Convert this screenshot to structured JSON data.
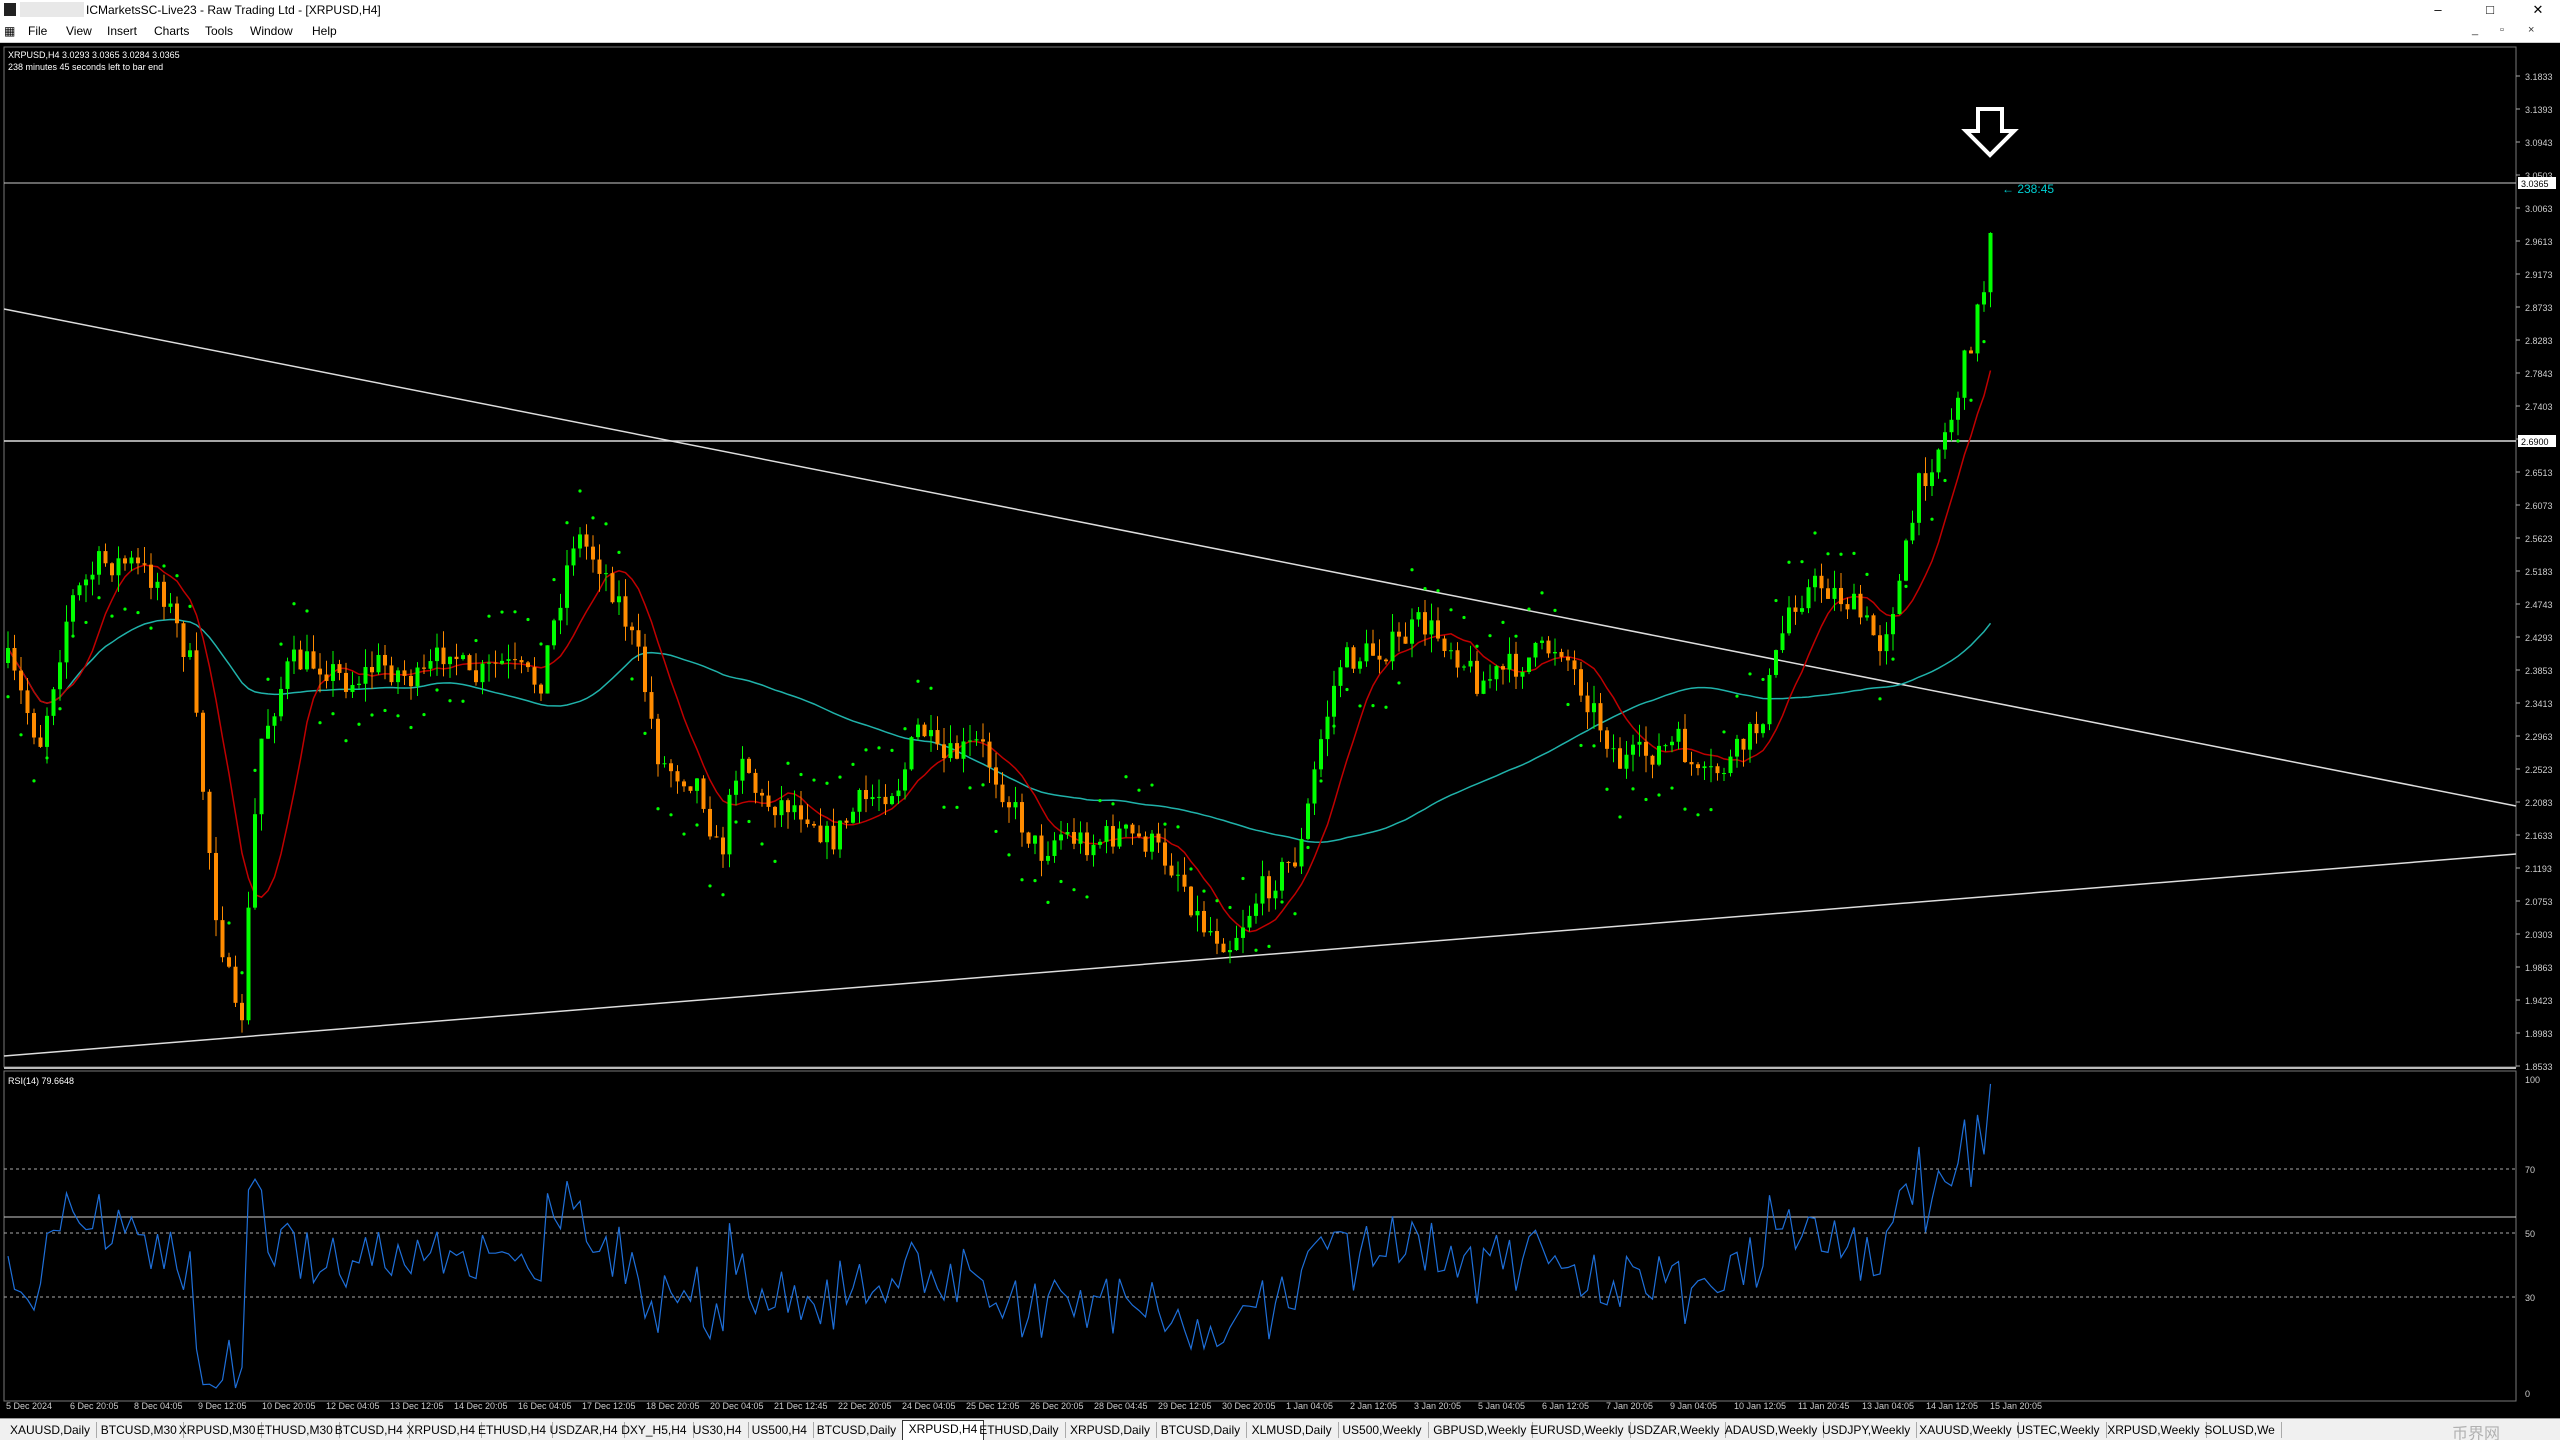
{
  "window": {
    "title": "ICMarketsSC-Live23 - Raw Trading Ltd - [XRPUSD,H4]",
    "minimize": "–",
    "maximize": "□",
    "close": "✕"
  },
  "menu": [
    "File",
    "View",
    "Insert",
    "Charts",
    "Tools",
    "Window",
    "Help"
  ],
  "chart_header": {
    "symbol_line": "XRPUSD,H4  3.0293 3.0365 3.0284 3.0365",
    "timer_line": "238 minutes 45 seconds left to bar end",
    "countdown_label": "← 238:45"
  },
  "rsi_header": "RSI(14) 79.6648",
  "price_axis": [
    "3.1833",
    "3.1393",
    "3.0943",
    "3.0503",
    "3.0063",
    "2.9613",
    "2.9173",
    "2.8733",
    "2.8283",
    "2.7843",
    "2.7403",
    "2.6953",
    "2.6513",
    "2.6073",
    "2.5623",
    "2.5183",
    "2.4743",
    "2.4293",
    "2.3853",
    "2.3413",
    "2.2963",
    "2.2523",
    "2.2083",
    "2.1633",
    "2.1193",
    "2.0753",
    "2.0303",
    "1.9863",
    "1.9423",
    "1.8983",
    "1.8533"
  ],
  "price_tags": {
    "current": "3.0365",
    "horizontal_level": "2.6900"
  },
  "rsi_axis": [
    "100",
    "70",
    "50",
    "30",
    "0"
  ],
  "time_axis": [
    "5 Dec 2024",
    "6 Dec 20:05",
    "8 Dec 04:05",
    "9 Dec 12:05",
    "10 Dec 20:05",
    "12 Dec 04:05",
    "13 Dec 12:05",
    "14 Dec 20:05",
    "16 Dec 04:05",
    "17 Dec 12:05",
    "18 Dec 20:05",
    "20 Dec 04:05",
    "21 Dec 12:45",
    "22 Dec 20:05",
    "24 Dec 04:05",
    "25 Dec 12:05",
    "26 Dec 20:05",
    "28 Dec 04:45",
    "29 Dec 12:05",
    "30 Dec 20:05",
    "1 Jan 04:05",
    "2 Jan 12:05",
    "3 Jan 20:05",
    "5 Jan 04:05",
    "6 Jan 12:05",
    "7 Jan 20:05",
    "9 Jan 04:05",
    "10 Jan 12:05",
    "11 Jan 20:45",
    "13 Jan 04:05",
    "14 Jan 12:05",
    "15 Jan 20:05"
  ],
  "tabs": [
    "XAUUSD,Daily",
    "BTCUSD,M30",
    "XRPUSD,M30",
    "ETHUSD,M30",
    "BTCUSD,H4",
    "XRPUSD,H4",
    "ETHUSD,H4",
    "USDZAR,H4",
    "DXY_H5,H4",
    "US30,H4",
    "US500,H4",
    "BTCUSD,Daily",
    "XRPUSD,H4",
    "ETHUSD,Daily",
    "XRPUSD,Daily",
    "BTCUSD,Daily",
    "XLMUSD,Daily",
    "US500,Weekly",
    "GBPUSD,Weekly",
    "EURUSD,Weekly",
    "USDZAR,Weekly",
    "ADAUSD,Weekly",
    "USDJPY,Weekly",
    "XAUUSD,Weekly",
    "USTEC,Weekly",
    "XRPUSD,Weekly",
    "SOLUSD,We"
  ],
  "active_tab_index": 12,
  "watermark": "币界网",
  "colors": {
    "bull": "#00ff00",
    "bear": "#ff8c00",
    "ma_fast": "#c00000",
    "ma_slow": "#20b2aa",
    "sar": "#00ff00",
    "rsi": "#1e6fd9",
    "countdown": "#00ced1"
  },
  "icons": {
    "menu_icon": "chart-icon",
    "annotation": "down-arrow-icon"
  }
}
